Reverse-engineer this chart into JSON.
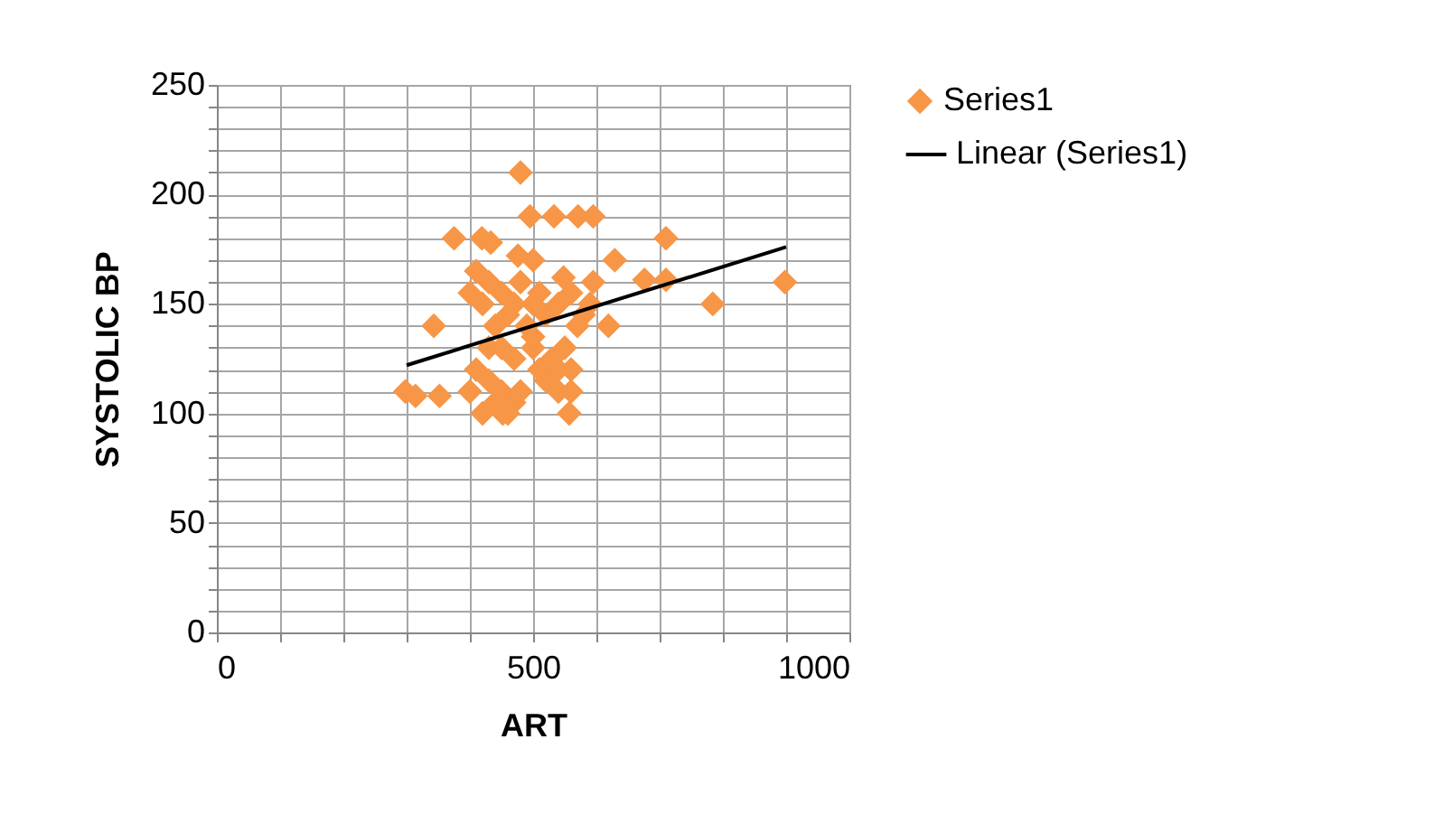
{
  "chart_data": {
    "type": "scatter",
    "xlabel": "ART",
    "ylabel": "SYSTOLIC BP",
    "xlim": [
      0,
      1000
    ],
    "ylim": [
      0,
      250
    ],
    "xticks": [
      0,
      {
        "value": 100,
        "label": null
      },
      {
        "value": 200,
        "label": null
      },
      {
        "value": 300,
        "label": null
      },
      {
        "value": 400,
        "label": null
      },
      500,
      {
        "value": 600,
        "label": null
      },
      {
        "value": 700,
        "label": null
      },
      {
        "value": 800,
        "label": null
      },
      {
        "value": 900,
        "label": null
      },
      1000
    ],
    "yticks": [
      0,
      {
        "value": 10,
        "label": null
      },
      {
        "value": 20,
        "label": null
      },
      {
        "value": 30,
        "label": null
      },
      {
        "value": 40,
        "label": null
      },
      50,
      {
        "value": 60,
        "label": null
      },
      {
        "value": 70,
        "label": null
      },
      {
        "value": 80,
        "label": null
      },
      {
        "value": 90,
        "label": null
      },
      100,
      {
        "value": 110,
        "label": null
      },
      {
        "value": 120,
        "label": null
      },
      {
        "value": 130,
        "label": null
      },
      {
        "value": 140,
        "label": null
      },
      150,
      {
        "value": 160,
        "label": null
      },
      {
        "value": 170,
        "label": null
      },
      {
        "value": 180,
        "label": null
      },
      {
        "value": 190,
        "label": null
      },
      200,
      {
        "value": 210,
        "label": null
      },
      {
        "value": 220,
        "label": null
      },
      {
        "value": 230,
        "label": null
      },
      {
        "value": 240,
        "label": null
      },
      250
    ],
    "grid": true,
    "legend": "right",
    "series": [
      {
        "name": "Series1",
        "color": "#f79646",
        "marker": "diamond",
        "x": [
          480,
          495,
          533,
          571,
          595,
          375,
          419,
          433,
          476,
          500,
          629,
          710,
          676,
          710,
          898,
          784,
          619,
          343,
          298,
          314,
          352,
          557,
          420,
          452,
          595,
          548,
          420,
          430,
          440,
          450,
          460,
          470,
          480,
          490,
          500,
          510,
          520,
          540,
          560,
          580,
          400,
          410,
          430,
          450,
          470,
          500,
          510,
          530,
          550,
          560,
          540,
          560,
          450,
          430,
          410,
          400,
          470,
          480,
          520,
          540,
          440,
          460,
          500,
          570,
          590
        ],
        "values": [
          210,
          190,
          190,
          190,
          190,
          180,
          180,
          178,
          172,
          170,
          170,
          180,
          161,
          161,
          160,
          150,
          140,
          140,
          110,
          108,
          108,
          100,
          100,
          100,
          160,
          162,
          150,
          160,
          140,
          155,
          145,
          150,
          160,
          140,
          150,
          155,
          145,
          150,
          155,
          145,
          155,
          165,
          130,
          130,
          125,
          130,
          120,
          125,
          130,
          120,
          110,
          110,
          110,
          115,
          120,
          110,
          105,
          110,
          115,
          120,
          105,
          100,
          135,
          140,
          150
        ]
      },
      {
        "name": "Linear (Series1)",
        "type": "line",
        "color": "#000000",
        "line_style": "solid",
        "marker": "none",
        "x": [
          300,
          900
        ],
        "values": [
          122,
          176
        ]
      }
    ]
  }
}
